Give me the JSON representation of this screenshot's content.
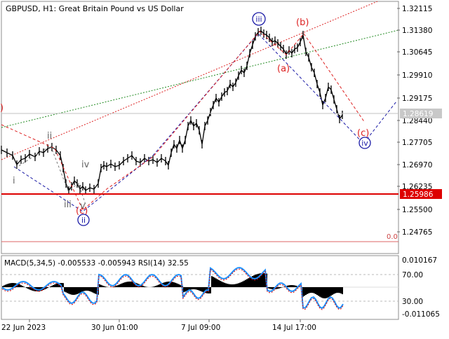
{
  "window": {
    "title": "GBPUSD, H1:  Great Britain Pound vs US Dollar"
  },
  "price_axis": {
    "labels": [
      "1.32115",
      "1.31380",
      "1.30645",
      "1.29910",
      "1.29175",
      "1.28440",
      "1.27705",
      "1.26970",
      "1.26235",
      "1.25500",
      "1.24765"
    ],
    "current_price": "1.28619",
    "support_level": "1.25986"
  },
  "time_axis": {
    "labels": [
      "22 Jun 2023",
      "30 Jun 01:00",
      "7 Jul 09:00",
      "14 Jul 17:00"
    ]
  },
  "fib_level": {
    "label": "0.0"
  },
  "indicator": {
    "title": "MACD(5,34,5) -0.005533 -0.005943 RSI(14) 32.55",
    "labels": [
      "0.010167",
      "70.00",
      "30.00",
      "-0.011065"
    ]
  },
  "wave_labels": {
    "i_small": "i",
    "ii_small": "ii",
    "iii_small": "iii",
    "iv_small": "iv",
    "v_small": "v",
    "ii_circle": "ii",
    "iii_circle": "iii",
    "iv_circle": "iv",
    "a": "(a)",
    "b": "(b)",
    "c": "(c)",
    "c_left": "(c)",
    "left_partial": ")"
  },
  "colors": {
    "grid": "#c8c8c8",
    "candles": "#000000",
    "support": "#dd0000",
    "red_wave": "#dd2222",
    "blue_wave": "#1a1aa6",
    "grey_wave": "#666666",
    "macd_hist": "#000000",
    "rsi": "#1e90ff",
    "signal": "#dd0000"
  }
}
